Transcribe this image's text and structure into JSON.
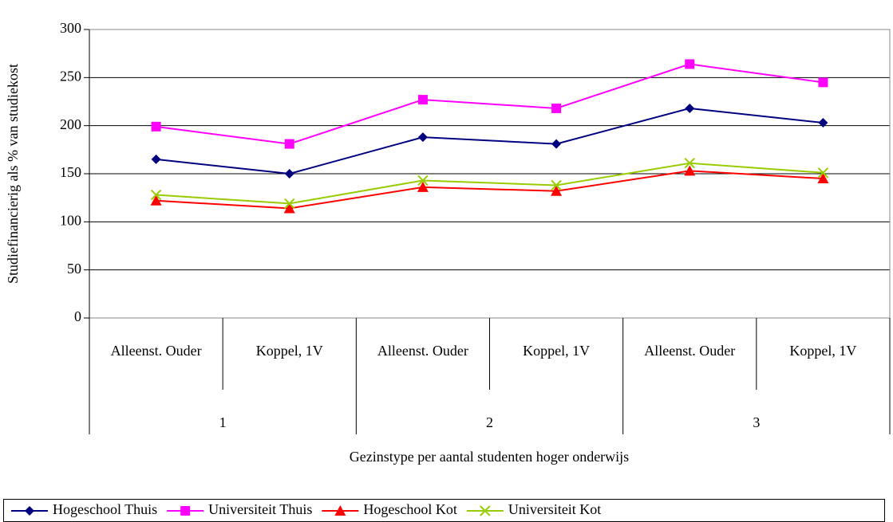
{
  "chart_data": {
    "type": "line",
    "x_label": "Gezinstype per aantal studenten hoger onderwijs",
    "y_label": "Studiefinancierig als % van studiekost",
    "categories": [
      "Alleenst. Ouder",
      "Koppel, 1V",
      "Alleenst. Ouder",
      "Koppel, 1V",
      "Alleenst. Ouder",
      "Koppel, 1V"
    ],
    "groups": [
      "1",
      "2",
      "3"
    ],
    "series": [
      {
        "name": "Hogeschool Thuis",
        "color": "#000080",
        "marker": "diamond",
        "values": [
          165,
          150,
          188,
          181,
          218,
          203
        ]
      },
      {
        "name": "Universiteit Thuis",
        "color": "#ff00ff",
        "marker": "square",
        "values": [
          199,
          181,
          227,
          218,
          264,
          245
        ]
      },
      {
        "name": "Hogeschool Kot",
        "color": "#ff0000",
        "marker": "triangle",
        "values": [
          122,
          114,
          136,
          132,
          153,
          145
        ]
      },
      {
        "name": "Universiteit Kot",
        "color": "#99cc00",
        "marker": "x",
        "values": [
          128,
          119,
          143,
          138,
          161,
          151
        ]
      }
    ],
    "ylim": [
      0,
      300
    ],
    "yticks": [
      0,
      50,
      100,
      150,
      200,
      250,
      300
    ],
    "grid": true,
    "legend": "bottom"
  }
}
